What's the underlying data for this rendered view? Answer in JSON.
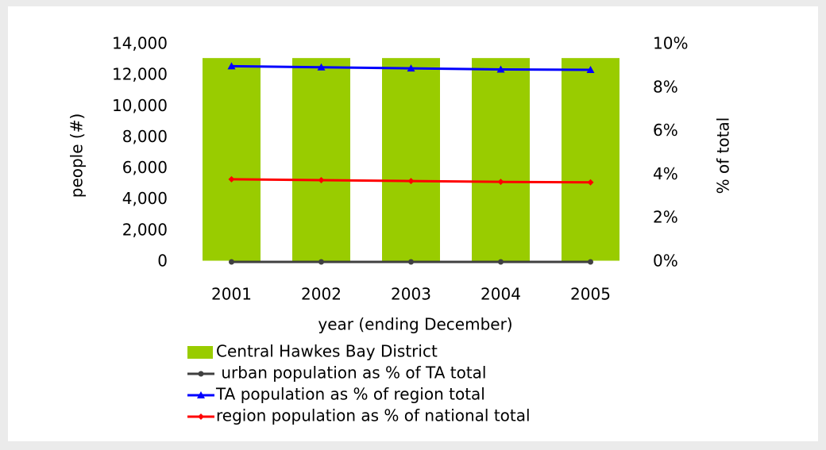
{
  "chart_data": {
    "type": "bar",
    "categories": [
      "2001",
      "2002",
      "2003",
      "2004",
      "2005"
    ],
    "xlabel": "year (ending December)",
    "ylabel": "people (#)",
    "y2label": "% of total",
    "ylim": [
      0,
      14000
    ],
    "yticks": [
      0,
      {
        "value": 2000,
        "label": "2,000"
      },
      {
        "value": 4000,
        "label": "4,000"
      },
      {
        "value": 6000,
        "label": "6,000"
      },
      {
        "value": 8000,
        "label": "8,000"
      },
      {
        "value": 10000,
        "label": "10,000"
      },
      {
        "value": 12000,
        "label": "12,000"
      },
      {
        "value": 14000,
        "label": "14,000"
      }
    ],
    "y2lim": [
      0,
      10
    ],
    "y2ticks": [
      {
        "value": 0,
        "label": "0%"
      },
      {
        "value": 2,
        "label": "2%"
      },
      {
        "value": 4,
        "label": "4%"
      },
      {
        "value": 6,
        "label": "6%"
      },
      {
        "value": 8,
        "label": "8%"
      },
      {
        "value": 10,
        "label": "10%"
      }
    ],
    "series": [
      {
        "name": "Central Hawkes Bay District",
        "type": "bar",
        "color": "#99cc00",
        "values": [
          13200,
          13200,
          13200,
          13200,
          13200
        ]
      },
      {
        "name": " urban population as % of TA total",
        "type": "line",
        "marker": "circle",
        "axis": "y2",
        "color": "#404040",
        "values": [
          0,
          0,
          0,
          0,
          0
        ]
      },
      {
        "name": "TA population as % of region total",
        "type": "line",
        "marker": "triangle",
        "axis": "y2",
        "color": "#0000ff",
        "values": [
          9.0,
          8.95,
          8.9,
          8.85,
          8.83
        ]
      },
      {
        "name": "region population as % of national total",
        "type": "line",
        "marker": "diamond",
        "axis": "y2",
        "color": "#ff0000",
        "values": [
          3.8,
          3.76,
          3.72,
          3.68,
          3.66
        ]
      }
    ]
  }
}
